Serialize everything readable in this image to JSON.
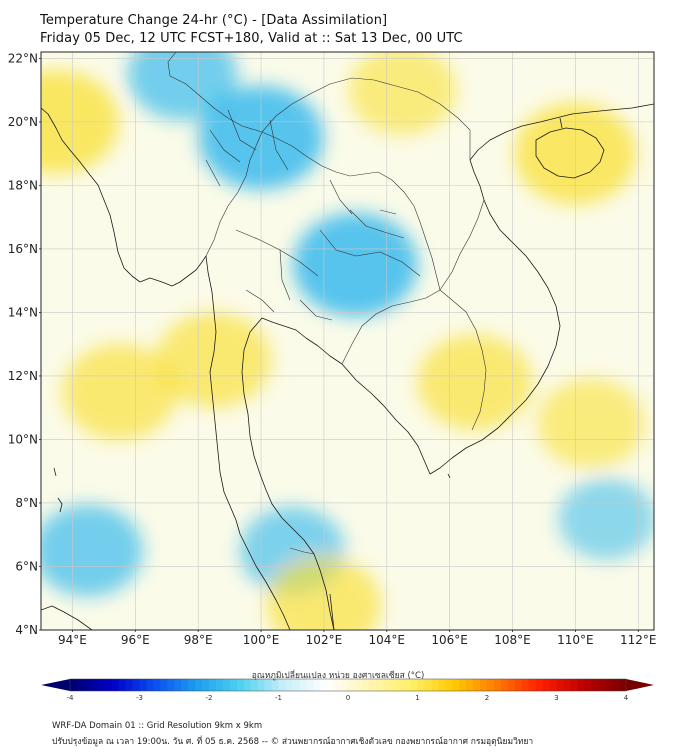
{
  "title": {
    "line1": "Temperature Change 24-hr (°C) - [Data Assimilation]",
    "line2": "Friday 05 Dec, 12 UTC FCST+180, Valid at :: Sat 13 Dec, 00 UTC"
  },
  "map": {
    "lon_range": [
      93,
      112.5
    ],
    "lat_range": [
      4,
      22.2
    ],
    "lat_ticks": [
      "22°N",
      "20°N",
      "18°N",
      "16°N",
      "14°N",
      "12°N",
      "10°N",
      "8°N",
      "6°N",
      "4°N"
    ],
    "lon_ticks": [
      "94°E",
      "96°E",
      "98°E",
      "100°E",
      "102°E",
      "104°E",
      "106°E",
      "108°E",
      "110°E",
      "112°E"
    ],
    "lat_values": [
      22,
      20,
      18,
      16,
      14,
      12,
      10,
      8,
      6,
      4
    ],
    "lon_values": [
      94,
      96,
      98,
      100,
      102,
      104,
      106,
      108,
      110,
      112
    ],
    "field_blobs": [
      {
        "kind": "cool",
        "lon": 100.0,
        "lat": 19.5,
        "strength": 0.9
      },
      {
        "kind": "cool",
        "lon": 103.0,
        "lat": 15.5,
        "strength": 0.9
      },
      {
        "kind": "cool",
        "lon": 97.5,
        "lat": 21.5,
        "strength": 0.6
      },
      {
        "kind": "cool",
        "lon": 94.5,
        "lat": 6.5,
        "strength": 0.6
      },
      {
        "kind": "cool",
        "lon": 101.0,
        "lat": 6.5,
        "strength": 0.5
      },
      {
        "kind": "cool",
        "lon": 111.0,
        "lat": 7.5,
        "strength": 0.35
      },
      {
        "kind": "warm",
        "lon": 93.5,
        "lat": 20.0,
        "strength": 0.9
      },
      {
        "kind": "warm",
        "lon": 110.0,
        "lat": 19.0,
        "strength": 0.85
      },
      {
        "kind": "warm",
        "lon": 95.5,
        "lat": 11.5,
        "strength": 0.7
      },
      {
        "kind": "warm",
        "lon": 98.5,
        "lat": 12.5,
        "strength": 0.7
      },
      {
        "kind": "warm",
        "lon": 106.8,
        "lat": 11.8,
        "strength": 0.7
      },
      {
        "kind": "warm",
        "lon": 102.0,
        "lat": 4.8,
        "strength": 0.7
      },
      {
        "kind": "warm",
        "lon": 110.5,
        "lat": 10.5,
        "strength": 0.55
      },
      {
        "kind": "warm",
        "lon": 104.5,
        "lat": 21.0,
        "strength": 0.55
      }
    ]
  },
  "colorbar": {
    "title": "อุณหภูมิเปลี่ยนแปลง หน่วย องศาเซลเซียส (°C)",
    "range": [
      -4,
      4
    ],
    "tick_values": [
      -4,
      -3,
      -2,
      -1,
      0,
      1,
      2,
      3,
      4
    ],
    "tick_labels": [
      "-4",
      "-3",
      "-2",
      "-1",
      "0",
      "1",
      "2",
      "3",
      "4"
    ],
    "colors": [
      "#00006e",
      "#0000c8",
      "#0a50f0",
      "#1ea0f0",
      "#50d2f0",
      "#c8eef8",
      "#ffffff",
      "#fff5b4",
      "#fff064",
      "#ffc800",
      "#ff7800",
      "#ff1e00",
      "#be0000",
      "#780000"
    ]
  },
  "footer": {
    "line1": "WRF-DA Domain 01 :: Grid Resolution 9km x 9km",
    "line2": "ปรับปรุงข้อมูล ณ เวลา 19:00น. วัน ศ. ที่ 05 ธ.ค. 2568 -- © ส่วนพยากรณ์อากาศเชิงตัวเลข กองพยากรณ์อากาศ กรมอุตุนิยมวิทยา"
  },
  "style": {
    "cool_color": "#1fb3ee",
    "warm_color": "#f9e033",
    "grid_color": "#c9c9c9",
    "coast_color": "#1a1a1a"
  }
}
